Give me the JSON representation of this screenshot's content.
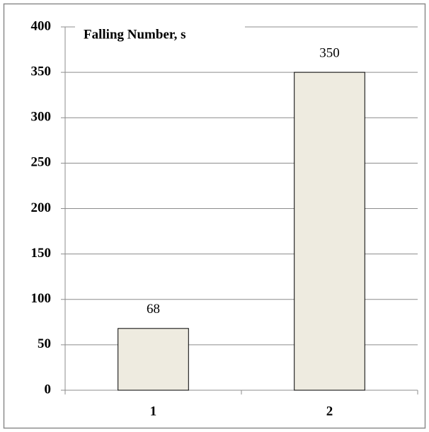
{
  "chart_data": {
    "type": "bar",
    "title": "Falling Number, s",
    "categories": [
      "1",
      "2"
    ],
    "values": [
      68,
      350
    ],
    "color": "#eeebe0",
    "ylim": [
      0,
      400
    ],
    "yticks": [
      0,
      50,
      100,
      150,
      200,
      250,
      300,
      350,
      400
    ],
    "grid": true
  }
}
